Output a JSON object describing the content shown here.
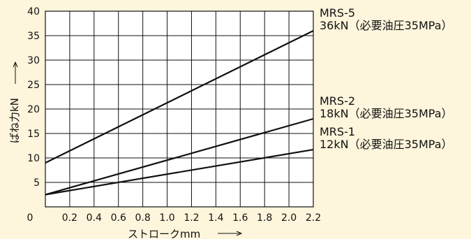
{
  "chart_data": {
    "type": "line",
    "xlabel": "ストロークmm",
    "ylabel": "ばね力kN",
    "xlim": [
      0,
      2.2
    ],
    "ylim": [
      0,
      40
    ],
    "x_ticks": [
      "0.2",
      "0.4",
      "0.6",
      "0.8",
      "1.0",
      "1.2",
      "1.4",
      "1.6",
      "1.8",
      "2.0",
      "2.2"
    ],
    "y_ticks": [
      "5",
      "10",
      "15",
      "20",
      "25",
      "30",
      "35",
      "40"
    ],
    "origin_label": "0",
    "grid": true,
    "series": [
      {
        "name": "MRS-5",
        "note": "36kN（必要油圧35MPa）",
        "x": [
          0,
          2.2
        ],
        "y": [
          9,
          36
        ]
      },
      {
        "name": "MRS-2",
        "note": "18kN（必要油圧35MPa）",
        "x": [
          0,
          2.2
        ],
        "y": [
          2.5,
          18
        ]
      },
      {
        "name": "MRS-1",
        "note": "12kN（必要油圧35MPa）",
        "x": [
          0,
          2.2
        ],
        "y": [
          2.5,
          11.7
        ]
      }
    ],
    "colors": {
      "background": "#fdf5dc",
      "plot": "#ffffff",
      "ink": "#111111"
    }
  }
}
